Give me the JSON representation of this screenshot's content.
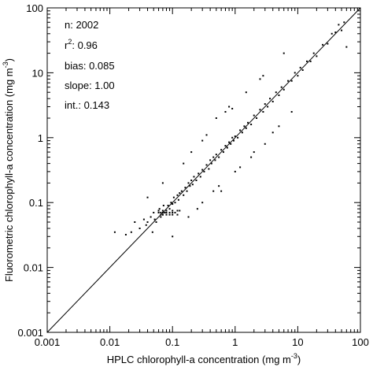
{
  "chart_data": {
    "type": "scatter",
    "title": "",
    "xlabel": "HPLC chlorophyll-a concentration",
    "xlabel_unit_prefix": "(mg m",
    "xlabel_unit_exp": "-3",
    "xlabel_unit_suffix": ")",
    "ylabel": "Fluorometric chlorophyll-a concentration",
    "ylabel_unit_prefix": "(mg m",
    "ylabel_unit_exp": "-3",
    "ylabel_unit_suffix": ")",
    "xscale": "log",
    "yscale": "log",
    "xlim": [
      0.001,
      100
    ],
    "ylim": [
      0.001,
      100
    ],
    "x_ticks": [
      0.001,
      0.01,
      0.1,
      1,
      10,
      100
    ],
    "y_ticks": [
      0.001,
      0.01,
      0.1,
      1,
      10,
      100
    ],
    "x_tick_labels": [
      "0.001",
      "0.01",
      "0.1",
      "1",
      "10",
      "100"
    ],
    "y_tick_labels": [
      "0.001",
      "0.01",
      "0.1",
      "1",
      "10",
      "100"
    ],
    "reference_line": "1:1",
    "grid": false,
    "marker_color": "#000000",
    "stats": {
      "n_label": "n: 2002",
      "r2_prefix": "r",
      "r2_exp": "2",
      "r2_value": ": 0.96",
      "bias_label": "bias: 0.085",
      "slope_label": "slope: 1.00",
      "int_label": "int.: 0.143"
    },
    "series": [
      {
        "points": [
          [
            0.018,
            0.032
          ],
          [
            0.022,
            0.035
          ],
          [
            0.025,
            0.05
          ],
          [
            0.03,
            0.04
          ],
          [
            0.035,
            0.055
          ],
          [
            0.038,
            0.045
          ],
          [
            0.04,
            0.05
          ],
          [
            0.045,
            0.06
          ],
          [
            0.048,
            0.035
          ],
          [
            0.05,
            0.07
          ],
          [
            0.052,
            0.055
          ],
          [
            0.055,
            0.05
          ],
          [
            0.06,
            0.07
          ],
          [
            0.062,
            0.08
          ],
          [
            0.065,
            0.06
          ],
          [
            0.07,
            0.065
          ],
          [
            0.072,
            0.09
          ],
          [
            0.075,
            0.07
          ],
          [
            0.08,
            0.075
          ],
          [
            0.085,
            0.09
          ],
          [
            0.09,
            0.08
          ],
          [
            0.095,
            0.1
          ],
          [
            0.1,
            0.095
          ],
          [
            0.105,
            0.12
          ],
          [
            0.11,
            0.1
          ],
          [
            0.12,
            0.13
          ],
          [
            0.125,
            0.11
          ],
          [
            0.13,
            0.14
          ],
          [
            0.14,
            0.15
          ],
          [
            0.15,
            0.13
          ],
          [
            0.16,
            0.17
          ],
          [
            0.17,
            0.15
          ],
          [
            0.18,
            0.2
          ],
          [
            0.19,
            0.18
          ],
          [
            0.2,
            0.22
          ],
          [
            0.21,
            0.19
          ],
          [
            0.22,
            0.25
          ],
          [
            0.24,
            0.22
          ],
          [
            0.26,
            0.28
          ],
          [
            0.28,
            0.25
          ],
          [
            0.3,
            0.32
          ],
          [
            0.32,
            0.3
          ],
          [
            0.35,
            0.38
          ],
          [
            0.38,
            0.33
          ],
          [
            0.4,
            0.45
          ],
          [
            0.42,
            0.4
          ],
          [
            0.45,
            0.5
          ],
          [
            0.48,
            0.45
          ],
          [
            0.5,
            0.55
          ],
          [
            0.55,
            0.5
          ],
          [
            0.6,
            0.65
          ],
          [
            0.65,
            0.6
          ],
          [
            0.7,
            0.75
          ],
          [
            0.75,
            0.7
          ],
          [
            0.8,
            0.85
          ],
          [
            0.85,
            0.8
          ],
          [
            0.9,
            1.0
          ],
          [
            0.95,
            0.9
          ],
          [
            1.0,
            1.05
          ],
          [
            1.1,
            1.0
          ],
          [
            1.2,
            1.3
          ],
          [
            1.3,
            1.2
          ],
          [
            1.4,
            1.5
          ],
          [
            1.5,
            1.4
          ],
          [
            1.6,
            1.7
          ],
          [
            1.8,
            1.6
          ],
          [
            2.0,
            2.2
          ],
          [
            2.2,
            2.0
          ],
          [
            2.5,
            2.7
          ],
          [
            2.8,
            2.5
          ],
          [
            3.0,
            3.3
          ],
          [
            3.3,
            3.0
          ],
          [
            3.6,
            4.0
          ],
          [
            4.0,
            3.6
          ],
          [
            4.5,
            5.0
          ],
          [
            5.0,
            4.5
          ],
          [
            5.5,
            6.0
          ],
          [
            6.0,
            5.5
          ],
          [
            7.0,
            7.5
          ],
          [
            8.0,
            7.5
          ],
          [
            9.0,
            10.0
          ],
          [
            10.0,
            9.0
          ],
          [
            11.0,
            12.0
          ],
          [
            12.0,
            11.0
          ],
          [
            14.0,
            15.0
          ],
          [
            16.0,
            15.0
          ],
          [
            18.0,
            20.0
          ],
          [
            20.0,
            18.0
          ],
          [
            25.0,
            27.0
          ],
          [
            30.0,
            28.0
          ],
          [
            35.0,
            40.0
          ],
          [
            40.0,
            42.0
          ],
          [
            50.0,
            45.0
          ],
          [
            55.0,
            60.0
          ],
          [
            60.0,
            25.0
          ],
          [
            45.0,
            55.0
          ],
          [
            0.04,
            0.12
          ],
          [
            0.1,
            0.03
          ],
          [
            0.2,
            0.6
          ],
          [
            0.3,
            0.1
          ],
          [
            0.5,
            2.0
          ],
          [
            0.6,
            0.15
          ],
          [
            0.8,
            3.0
          ],
          [
            1.0,
            0.3
          ],
          [
            1.5,
            5.0
          ],
          [
            2.0,
            0.6
          ],
          [
            3.0,
            0.8
          ],
          [
            5.0,
            1.5
          ],
          [
            0.15,
            0.4
          ],
          [
            0.25,
            0.08
          ],
          [
            0.7,
            2.5
          ],
          [
            1.2,
            0.35
          ],
          [
            2.5,
            8.0
          ],
          [
            4.0,
            1.2
          ],
          [
            0.012,
            0.035
          ],
          [
            0.3,
            0.9
          ],
          [
            0.45,
            0.15
          ],
          [
            0.9,
            2.8
          ],
          [
            1.8,
            0.5
          ],
          [
            6.0,
            20.0
          ],
          [
            8.0,
            2.5
          ],
          [
            0.07,
            0.2
          ],
          [
            0.18,
            0.06
          ],
          [
            0.35,
            1.1
          ],
          [
            0.55,
            0.18
          ],
          [
            2.8,
            9.0
          ],
          [
            0.065,
            0.07
          ],
          [
            0.07,
            0.07
          ],
          [
            0.08,
            0.07
          ],
          [
            0.09,
            0.07
          ],
          [
            0.1,
            0.07
          ],
          [
            0.11,
            0.07
          ],
          [
            0.065,
            0.065
          ],
          [
            0.07,
            0.065
          ],
          [
            0.08,
            0.065
          ],
          [
            0.09,
            0.065
          ],
          [
            0.1,
            0.065
          ],
          [
            0.12,
            0.065
          ],
          [
            0.06,
            0.075
          ],
          [
            0.07,
            0.075
          ],
          [
            0.08,
            0.075
          ],
          [
            0.1,
            0.075
          ],
          [
            0.12,
            0.075
          ],
          [
            0.13,
            0.075
          ]
        ]
      }
    ]
  }
}
